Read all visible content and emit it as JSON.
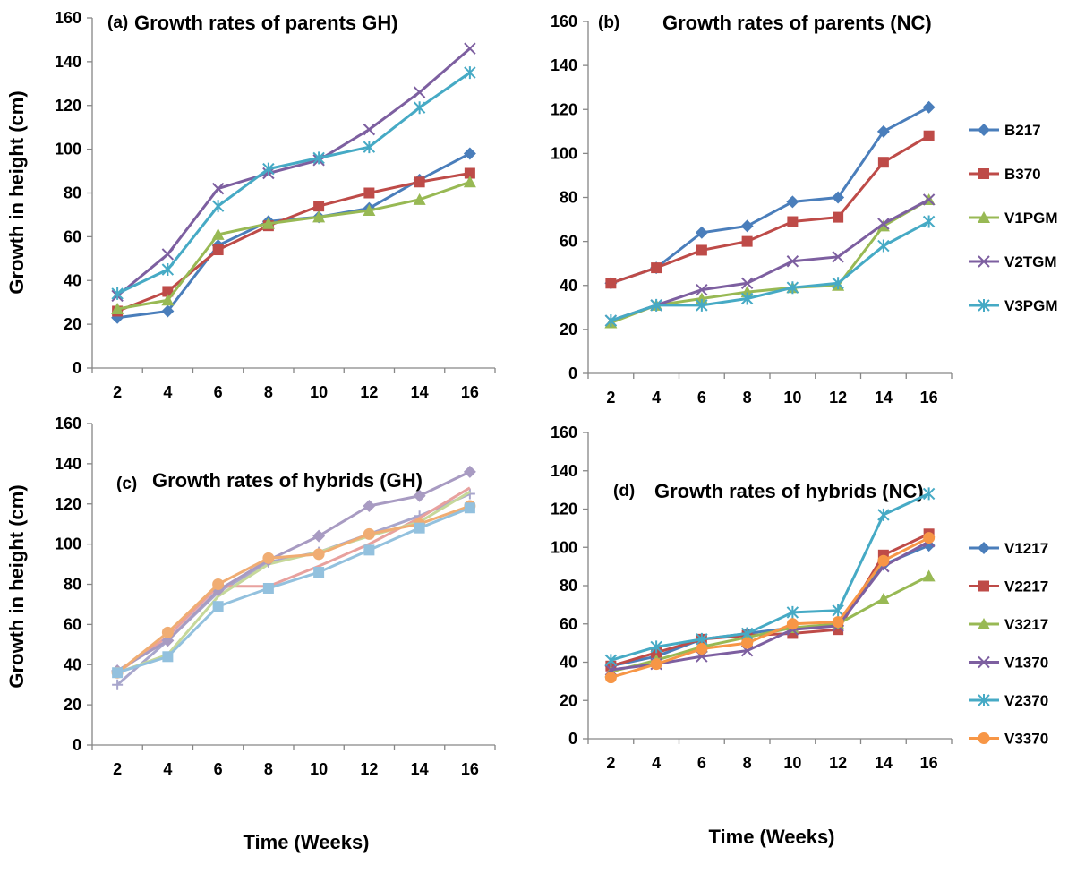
{
  "chart_data": [
    {
      "type": "line",
      "panel": "(a)",
      "title": "Growth rates of parents GH)",
      "ylabel": "Growth in height (cm)",
      "xlabel": "",
      "x": [
        2,
        4,
        6,
        8,
        10,
        12,
        14,
        16
      ],
      "xticks": [
        "2",
        "4",
        "6",
        "8",
        "10",
        "12",
        "14",
        "16"
      ],
      "ylim": [
        0,
        160
      ],
      "yticks": [
        "0",
        "20",
        "40",
        "60",
        "80",
        "100",
        "120",
        "140",
        "160"
      ],
      "grid": false,
      "legend": "none",
      "series": [
        {
          "name": "B217",
          "color": "#4a7ebb",
          "marker": "diamond",
          "values": [
            23,
            26,
            56,
            67,
            69,
            73,
            86,
            98
          ]
        },
        {
          "name": "B370",
          "color": "#be4b48",
          "marker": "square",
          "values": [
            26,
            35,
            54,
            65,
            74,
            80,
            85,
            89
          ]
        },
        {
          "name": "V1PGM",
          "color": "#98b954",
          "marker": "triangle",
          "values": [
            27,
            31,
            61,
            66,
            69,
            72,
            77,
            85
          ]
        },
        {
          "name": "V2TGM",
          "color": "#7d5fa0",
          "marker": "x",
          "values": [
            33,
            52,
            82,
            89,
            95,
            109,
            126,
            146
          ]
        },
        {
          "name": "V3PGM",
          "color": "#46aac5",
          "marker": "star",
          "values": [
            34,
            45,
            74,
            91,
            96,
            101,
            119,
            135
          ]
        }
      ]
    },
    {
      "type": "line",
      "panel": "(b)",
      "title": "Growth  rates of parents (NC)",
      "ylabel": "",
      "xlabel": "",
      "x": [
        2,
        4,
        6,
        8,
        10,
        12,
        14,
        16
      ],
      "xticks": [
        "2",
        "4",
        "6",
        "8",
        "10",
        "12",
        "14",
        "16"
      ],
      "ylim": [
        0,
        160
      ],
      "yticks": [
        "0",
        "20",
        "40",
        "60",
        "80",
        "100",
        "120",
        "140",
        "160"
      ],
      "grid": false,
      "legend": "right",
      "series": [
        {
          "name": "B217",
          "color": "#4a7ebb",
          "marker": "diamond",
          "values": [
            41,
            48,
            64,
            67,
            78,
            80,
            110,
            121
          ]
        },
        {
          "name": "B370",
          "color": "#be4b48",
          "marker": "square",
          "values": [
            41,
            48,
            56,
            60,
            69,
            71,
            96,
            108
          ]
        },
        {
          "name": "V1PGM",
          "color": "#98b954",
          "marker": "triangle",
          "values": [
            23,
            31,
            34,
            37,
            39,
            40,
            67,
            79
          ]
        },
        {
          "name": "V2TGM",
          "color": "#7d5fa0",
          "marker": "x",
          "values": [
            24,
            31,
            38,
            41,
            51,
            53,
            68,
            79
          ]
        },
        {
          "name": "V3PGM",
          "color": "#46aac5",
          "marker": "star",
          "values": [
            24,
            31,
            31,
            34,
            39,
            41,
            58,
            69
          ]
        }
      ]
    },
    {
      "type": "line",
      "panel": "(c)",
      "title": "Growth rates of hybrids (GH)",
      "ylabel": "Growth in height (cm)",
      "xlabel": "Time (Weeks)",
      "x": [
        2,
        4,
        6,
        8,
        10,
        12,
        14,
        16
      ],
      "xticks": [
        "2",
        "4",
        "6",
        "8",
        "10",
        "12",
        "14",
        "16"
      ],
      "ylim": [
        0,
        160
      ],
      "yticks": [
        "0",
        "20",
        "40",
        "60",
        "80",
        "100",
        "120",
        "140",
        "160"
      ],
      "grid": false,
      "legend": "none",
      "series": [
        {
          "color": "#a8a6cc",
          "marker": "plus",
          "values": [
            30,
            52,
            76,
            91,
            96,
            105,
            114,
            125
          ]
        },
        {
          "color": "#e8a19e",
          "marker": "none",
          "values": [
            36,
            54,
            79,
            79,
            89,
            100,
            113,
            128
          ]
        },
        {
          "color": "#c6d89a",
          "marker": "none",
          "values": [
            36,
            45,
            74,
            90,
            96,
            104,
            111,
            126
          ]
        },
        {
          "color": "#a89bc2",
          "marker": "diamond",
          "values": [
            37,
            52,
            77,
            92,
            104,
            119,
            124,
            136
          ]
        },
        {
          "color": "#f0ad73",
          "marker": "circle",
          "values": [
            36,
            56,
            80,
            93,
            95,
            105,
            110,
            119
          ]
        },
        {
          "color": "#93c1de",
          "marker": "square",
          "values": [
            36,
            44,
            69,
            78,
            86,
            97,
            108,
            118
          ]
        }
      ]
    },
    {
      "type": "line",
      "panel": "(d)",
      "title": "Growth rates of hybrids (NC)",
      "ylabel": "",
      "xlabel": "Time (Weeks)",
      "x": [
        2,
        4,
        6,
        8,
        10,
        12,
        14,
        16
      ],
      "xticks": [
        "2",
        "4",
        "6",
        "8",
        "10",
        "12",
        "14",
        "16"
      ],
      "ylim": [
        0,
        160
      ],
      "yticks": [
        "0",
        "20",
        "40",
        "60",
        "80",
        "100",
        "120",
        "140",
        "160"
      ],
      "grid": false,
      "legend": "right",
      "series": [
        {
          "name": "V1217",
          "color": "#4a7ebb",
          "marker": "diamond",
          "values": [
            38,
            43,
            52,
            55,
            58,
            59,
            91,
            101
          ]
        },
        {
          "name": "V2217",
          "color": "#be4b48",
          "marker": "square",
          "values": [
            38,
            45,
            52,
            54,
            55,
            57,
            96,
            107
          ]
        },
        {
          "name": "V3217",
          "color": "#98b954",
          "marker": "triangle",
          "values": [
            35,
            41,
            48,
            53,
            58,
            60,
            73,
            85
          ]
        },
        {
          "name": "V1370",
          "color": "#7d5fa0",
          "marker": "x",
          "values": [
            36,
            39,
            43,
            46,
            57,
            59,
            90,
            103
          ]
        },
        {
          "name": "V2370",
          "color": "#46aac5",
          "marker": "star",
          "values": [
            41,
            48,
            52,
            55,
            66,
            67,
            117,
            128
          ]
        },
        {
          "name": "V3370",
          "color": "#f79646",
          "marker": "circle",
          "values": [
            32,
            39,
            47,
            50,
            60,
            61,
            93,
            105
          ]
        }
      ]
    }
  ]
}
